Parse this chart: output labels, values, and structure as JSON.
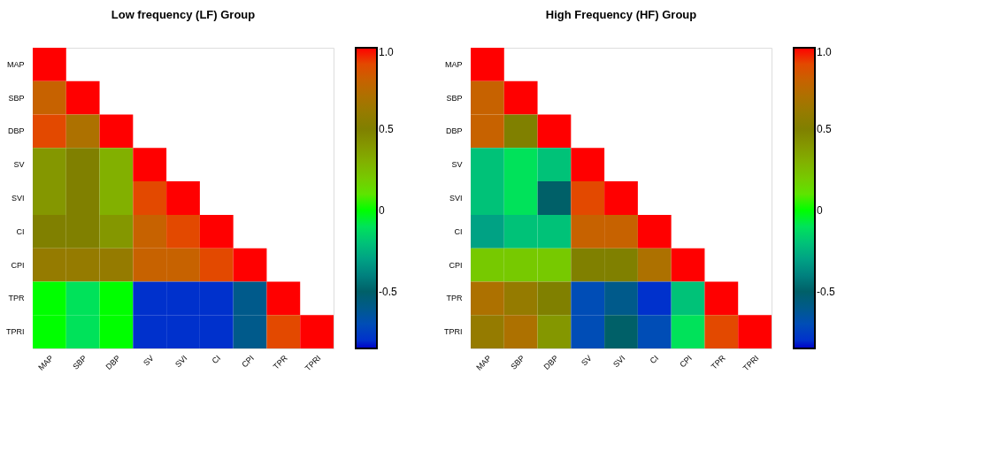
{
  "chart_data": [
    {
      "type": "heatmap",
      "title": "Low frequency (LF) Group",
      "categories": [
        "MAP",
        "SBP",
        "DBP",
        "SV",
        "SVI",
        "CI",
        "CPI",
        "TPR",
        "TPRI"
      ],
      "y_categories": [
        "MAP",
        "SBP",
        "DBP",
        "SV",
        "SVI",
        "CI",
        "CPI",
        "TPR",
        "TPRI"
      ],
      "cells": [
        [
          1,
          null,
          null,
          null,
          null,
          null,
          null,
          null,
          null
        ],
        [
          0.8,
          1,
          null,
          null,
          null,
          null,
          null,
          null,
          null
        ],
        [
          0.9,
          0.7,
          1,
          null,
          null,
          null,
          null,
          null,
          null
        ],
        [
          0.4,
          0.5,
          0.3,
          1,
          null,
          null,
          null,
          null,
          null
        ],
        [
          0.4,
          0.5,
          0.3,
          0.9,
          1,
          null,
          null,
          null,
          null
        ],
        [
          0.5,
          0.5,
          0.4,
          0.8,
          0.9,
          1,
          null,
          null,
          null
        ],
        [
          0.6,
          0.6,
          0.6,
          0.8,
          0.8,
          0.9,
          1,
          null,
          null
        ],
        [
          0,
          -0.1,
          0,
          -0.8,
          -0.8,
          -0.8,
          -0.6,
          1,
          null
        ],
        [
          0,
          -0.1,
          0,
          -0.8,
          -0.8,
          -0.8,
          -0.6,
          0.9,
          1
        ]
      ],
      "clim": [
        -0.85,
        1
      ],
      "cticks": [
        {
          "value": 1,
          "label": "1.0"
        },
        0.5,
        0,
        -0.5
      ]
    },
    {
      "type": "heatmap",
      "title": "High Frequency (HF) Group",
      "categories": [
        "MAP",
        "SBP",
        "DBP",
        "SV",
        "SVI",
        "CI",
        "CPI",
        "TPR",
        "TPRI"
      ],
      "y_categories": [
        "MAP",
        "SBP",
        "DBP",
        "SV",
        "SVI",
        "CI",
        "CPI",
        "TPR",
        "TPRI"
      ],
      "cells": [
        [
          1,
          null,
          null,
          null,
          null,
          null,
          null,
          null,
          null
        ],
        [
          0.8,
          1,
          null,
          null,
          null,
          null,
          null,
          null,
          null
        ],
        [
          0.8,
          0.5,
          1,
          null,
          null,
          null,
          null,
          null,
          null
        ],
        [
          -0.2,
          -0.1,
          -0.2,
          1,
          null,
          null,
          null,
          null,
          null
        ],
        [
          -0.2,
          -0.1,
          -0.5,
          0.9,
          1,
          null,
          null,
          null,
          null
        ],
        [
          -0.3,
          -0.2,
          -0.2,
          0.8,
          0.8,
          1,
          null,
          null,
          null
        ],
        [
          0.2,
          0.2,
          0.2,
          0.5,
          0.5,
          0.7,
          1,
          null,
          null
        ],
        [
          0.7,
          0.6,
          0.5,
          -0.7,
          -0.6,
          -0.8,
          -0.2,
          1,
          null
        ],
        [
          0.6,
          0.7,
          0.4,
          -0.7,
          -0.5,
          -0.7,
          -0.1,
          0.9,
          1
        ]
      ],
      "clim": [
        -0.85,
        1
      ],
      "cticks": [
        {
          "value": 1,
          "label": "1.0"
        },
        0.5,
        0,
        -0.5
      ]
    }
  ]
}
